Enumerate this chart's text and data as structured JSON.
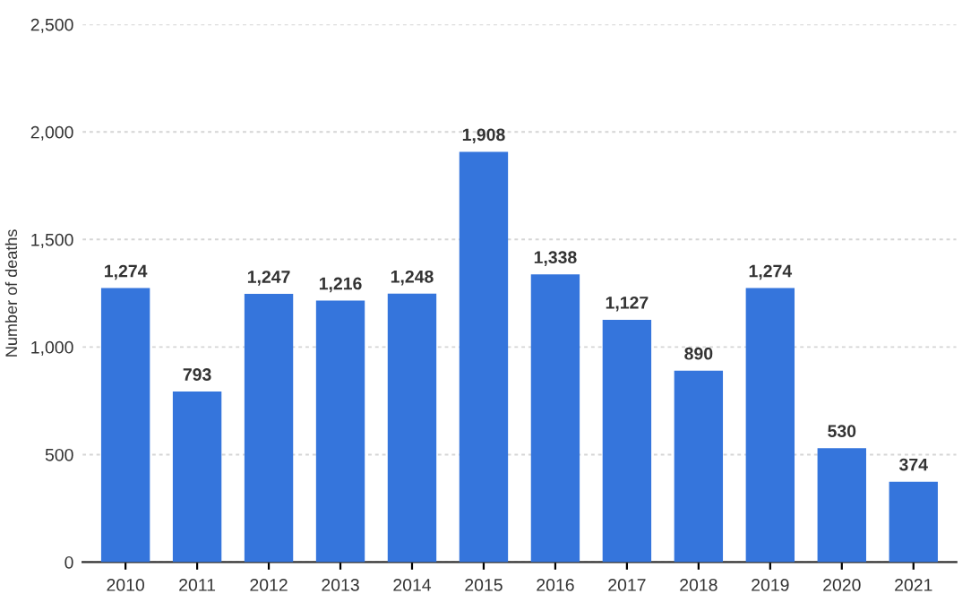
{
  "chart_data": {
    "type": "bar",
    "ylabel": "Number of deaths",
    "categories": [
      "2010",
      "2011",
      "2012",
      "2013",
      "2014",
      "2015",
      "2016",
      "2017",
      "2018",
      "2019",
      "2020",
      "2021"
    ],
    "values": [
      1274,
      793,
      1247,
      1216,
      1248,
      1908,
      1338,
      1127,
      890,
      1274,
      530,
      374
    ],
    "color": "#3575dc",
    "ylim": [
      0,
      2500
    ],
    "yticks": [
      {
        "value": 0,
        "label": "0"
      },
      {
        "value": 500,
        "label": "500"
      },
      {
        "value": 1000,
        "label": "1,000"
      },
      {
        "value": 1500,
        "label": "1,500"
      },
      {
        "value": 2000,
        "label": "2,000"
      },
      {
        "value": 2500,
        "label": "2,500"
      }
    ],
    "value_labels": [
      "1,274",
      "793",
      "1,247",
      "1,216",
      "1,248",
      "1,908",
      "1,338",
      "1,127",
      "890",
      "1,274",
      "530",
      "374"
    ],
    "grid": "y"
  }
}
